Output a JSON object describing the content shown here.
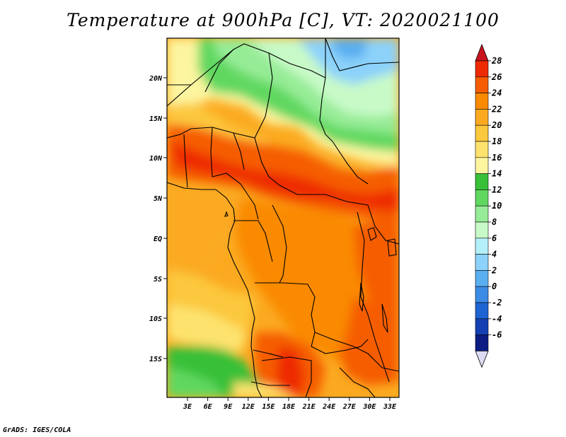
{
  "map": {
    "title": "Temperature at 900hPa [C], VT: 2020021100",
    "footer": "GrADS: IGES/COLA",
    "lat_labels": [
      "20N",
      "15N",
      "10N",
      "5N",
      "EQ",
      "5S",
      "10S",
      "15S"
    ],
    "lon_labels": [
      "3E",
      "6E",
      "9E",
      "12E",
      "15E",
      "18E",
      "21E",
      "24E",
      "27E",
      "30E",
      "33E"
    ],
    "region": {
      "lon_range": [
        0,
        34.5
      ],
      "lat_range": [
        -19.5,
        24.5
      ]
    }
  },
  "colorbar": {
    "labels": [
      "28",
      "26",
      "24",
      "22",
      "20",
      "18",
      "16",
      "14",
      "12",
      "10",
      "8",
      "6",
      "4",
      "2",
      "0",
      "-2",
      "-4",
      "-6"
    ],
    "colors": [
      "#ee2a00",
      "#f55d00",
      "#fa8a00",
      "#fbaa20",
      "#fcc83c",
      "#fde36e",
      "#fdf5a0",
      "#38c038",
      "#60d860",
      "#96ec96",
      "#c8fac8",
      "#b4f0fa",
      "#8cd2fa",
      "#5aaff0",
      "#3c8ce6",
      "#1e64d2",
      "#1440b4",
      "#0c1c82"
    ],
    "top_color": "#c8141e",
    "bottom_color": "#dcdcf5"
  }
}
